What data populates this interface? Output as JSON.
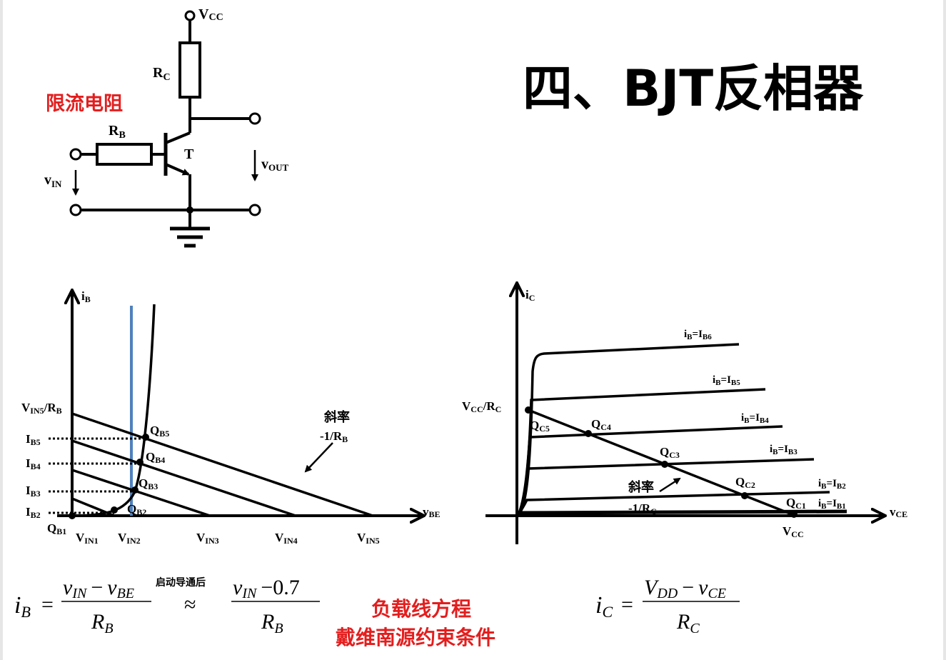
{
  "title": "四、BJT反相器",
  "circuit": {
    "vcc": "V",
    "vcc_sub": "CC",
    "rc": "R",
    "rc_sub": "C",
    "rb": "R",
    "rb_sub": "B",
    "transistor": "T",
    "vin": "v",
    "vin_sub": "IN",
    "vout": "v",
    "vout_sub": "OUT",
    "note": "限流电阻"
  },
  "input_chart": {
    "y_axis": "i",
    "y_axis_sub": "B",
    "x_axis": "v",
    "x_axis_sub": "BE",
    "top_label": "V",
    "top_label_sub": "IN5",
    "top_label_tail": "/R",
    "top_label_tail_sub": "B",
    "ib_levels": [
      {
        "name": "I",
        "sub": "B5"
      },
      {
        "name": "I",
        "sub": "B4"
      },
      {
        "name": "I",
        "sub": "B3"
      },
      {
        "name": "I",
        "sub": "B2"
      }
    ],
    "points": [
      {
        "name": "Q",
        "sub": "B1"
      },
      {
        "name": "Q",
        "sub": "B2"
      },
      {
        "name": "Q",
        "sub": "B3"
      },
      {
        "name": "Q",
        "sub": "B4"
      },
      {
        "name": "Q",
        "sub": "B5"
      }
    ],
    "vin_ticks": [
      {
        "name": "V",
        "sub": "IN1"
      },
      {
        "name": "V",
        "sub": "IN2"
      },
      {
        "name": "V",
        "sub": "IN3"
      },
      {
        "name": "V",
        "sub": "IN4"
      },
      {
        "name": "V",
        "sub": "IN5"
      }
    ],
    "slope_text": "斜率",
    "slope_value": "-1/R",
    "slope_value_sub": "B"
  },
  "output_chart": {
    "y_axis": "i",
    "y_axis_sub": "C",
    "x_axis": "v",
    "x_axis_sub": "CE",
    "top_label": "V",
    "top_label_sub": "CC",
    "top_label_tail": "/R",
    "top_label_tail_sub": "C",
    "x_tick": "V",
    "x_tick_sub": "CC",
    "curves": [
      {
        "pre": "i",
        "pre_sub": "B",
        "mid": "=I",
        "sub": "B6"
      },
      {
        "pre": "i",
        "pre_sub": "B",
        "mid": "=I",
        "sub": "B5"
      },
      {
        "pre": "i",
        "pre_sub": "B",
        "mid": "=I",
        "sub": "B4"
      },
      {
        "pre": "i",
        "pre_sub": "B",
        "mid": "=I",
        "sub": "B3"
      },
      {
        "pre": "i",
        "pre_sub": "B",
        "mid": "=I",
        "sub": "B2"
      },
      {
        "pre": "i",
        "pre_sub": "B",
        "mid": "=I",
        "sub": "B1"
      }
    ],
    "points": [
      {
        "name": "Q",
        "sub": "C5"
      },
      {
        "name": "Q",
        "sub": "C4"
      },
      {
        "name": "Q",
        "sub": "C3"
      },
      {
        "name": "Q",
        "sub": "C2"
      },
      {
        "name": "Q",
        "sub": "C1"
      }
    ],
    "slope_text": "斜率",
    "slope_value": "-1/R",
    "slope_value_sub": "C"
  },
  "equations": {
    "eq1_lhs": "i",
    "eq1_lhs_sub": "B",
    "eq1_num_a": "v",
    "eq1_num_a_sub": "IN",
    "eq1_minus": "−",
    "eq1_num_b": "v",
    "eq1_num_b_sub": "BE",
    "eq1_den": "R",
    "eq1_den_sub": "B",
    "approx_note": "启动导通后",
    "approx": "≈",
    "eq2_num_a": "v",
    "eq2_num_a_sub": "IN",
    "eq2_num_b": "−0.7",
    "eq2_den": "R",
    "eq2_den_sub": "B",
    "eq3_lhs": "i",
    "eq3_lhs_sub": "C",
    "eq3_num_a": "V",
    "eq3_num_a_sub": "DD",
    "eq3_minus": "−",
    "eq3_num_b": "v",
    "eq3_num_b_sub": "CE",
    "eq3_den": "R",
    "eq3_den_sub": "C",
    "equals": "="
  },
  "notes": {
    "load_line": "负载线方程",
    "thevenin": "戴维南源约束条件"
  }
}
